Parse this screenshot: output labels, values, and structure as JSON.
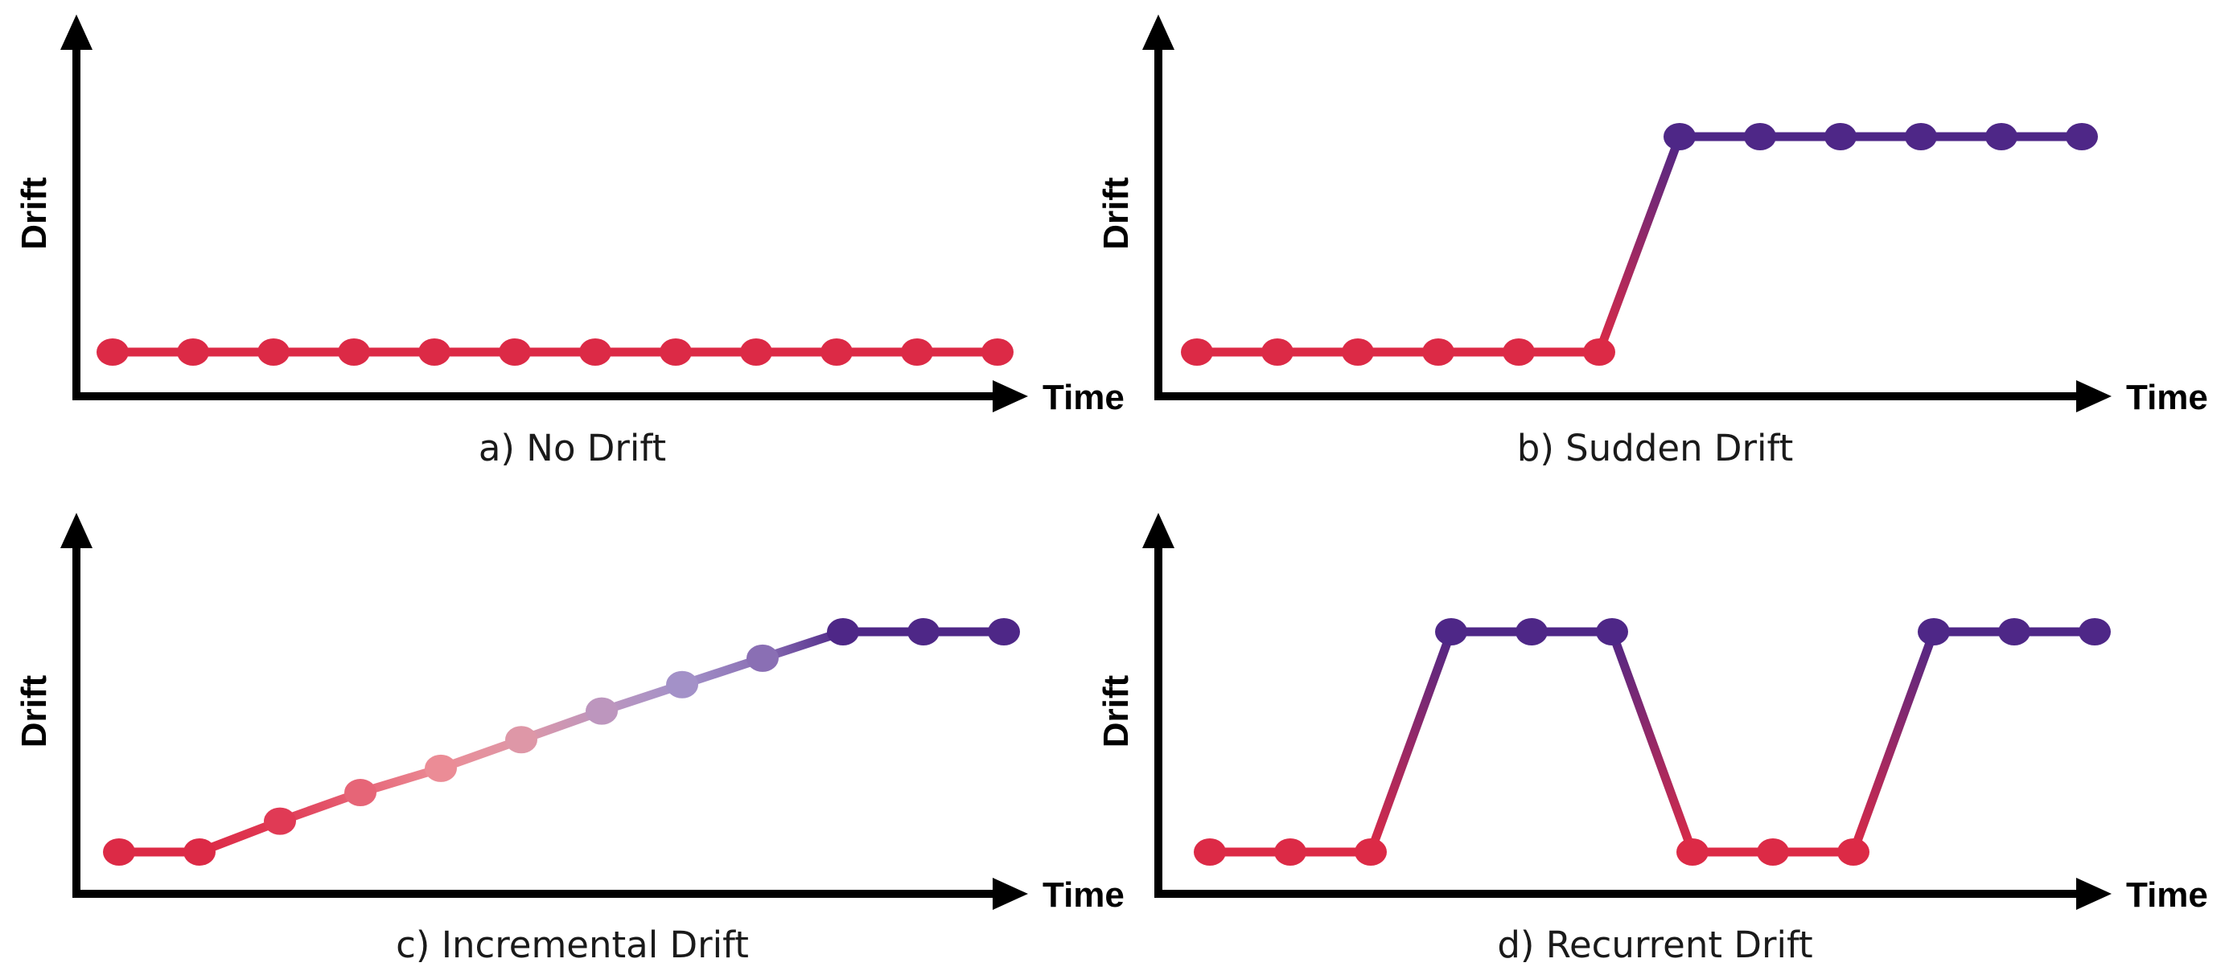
{
  "colors": {
    "axis": "#000000",
    "red": "#DC2A46",
    "purple": "#4E2787"
  },
  "chart_data": [
    {
      "type": "line",
      "caption": "a) No Drift",
      "xlabel": "Time",
      "ylabel": "Drift",
      "points": [
        {
          "x": 1,
          "y": 0,
          "color": "#DC2A46"
        },
        {
          "x": 2,
          "y": 0,
          "color": "#DC2A46"
        },
        {
          "x": 3,
          "y": 0,
          "color": "#DC2A46"
        },
        {
          "x": 4,
          "y": 0,
          "color": "#DC2A46"
        },
        {
          "x": 5,
          "y": 0,
          "color": "#DC2A46"
        },
        {
          "x": 6,
          "y": 0,
          "color": "#DC2A46"
        },
        {
          "x": 7,
          "y": 0,
          "color": "#DC2A46"
        },
        {
          "x": 8,
          "y": 0,
          "color": "#DC2A46"
        },
        {
          "x": 9,
          "y": 0,
          "color": "#DC2A46"
        },
        {
          "x": 10,
          "y": 0,
          "color": "#DC2A46"
        },
        {
          "x": 11,
          "y": 0,
          "color": "#DC2A46"
        },
        {
          "x": 12,
          "y": 0,
          "color": "#DC2A46"
        }
      ]
    },
    {
      "type": "line",
      "caption": "b) Sudden Drift",
      "xlabel": "Time",
      "ylabel": "Drift",
      "points": [
        {
          "x": 1,
          "y": 0,
          "color": "#DC2A46"
        },
        {
          "x": 2,
          "y": 0,
          "color": "#DC2A46"
        },
        {
          "x": 3,
          "y": 0,
          "color": "#DC2A46"
        },
        {
          "x": 4,
          "y": 0,
          "color": "#DC2A46"
        },
        {
          "x": 5,
          "y": 0,
          "color": "#DC2A46"
        },
        {
          "x": 6,
          "y": 0,
          "color": "#DC2A46"
        },
        {
          "x": 7,
          "y": 1,
          "color": "#4E2787"
        },
        {
          "x": 8,
          "y": 1,
          "color": "#4E2787"
        },
        {
          "x": 9,
          "y": 1,
          "color": "#4E2787"
        },
        {
          "x": 10,
          "y": 1,
          "color": "#4E2787"
        },
        {
          "x": 11,
          "y": 1,
          "color": "#4E2787"
        },
        {
          "x": 12,
          "y": 1,
          "color": "#4E2787"
        }
      ]
    },
    {
      "type": "line",
      "caption": "c) Incremental Drift",
      "xlabel": "Time",
      "ylabel": "Drift",
      "points": [
        {
          "x": 1,
          "y": 0,
          "color": "#DC2A46"
        },
        {
          "x": 2,
          "y": 0,
          "color": "#DC2A46"
        },
        {
          "x": 3,
          "y": 0.14,
          "color": "#E03A55"
        },
        {
          "x": 4,
          "y": 0.27,
          "color": "#E66577"
        },
        {
          "x": 5,
          "y": 0.38,
          "color": "#EB8C96"
        },
        {
          "x": 6,
          "y": 0.51,
          "color": "#DE97A7"
        },
        {
          "x": 7,
          "y": 0.64,
          "color": "#BD96BE"
        },
        {
          "x": 8,
          "y": 0.76,
          "color": "#A391C8"
        },
        {
          "x": 9,
          "y": 0.88,
          "color": "#8A6FB4"
        },
        {
          "x": 10,
          "y": 1,
          "color": "#4E2787"
        },
        {
          "x": 11,
          "y": 1,
          "color": "#4E2787"
        },
        {
          "x": 12,
          "y": 1,
          "color": "#4E2787"
        }
      ]
    },
    {
      "type": "line",
      "caption": "d) Recurrent Drift",
      "xlabel": "Time",
      "ylabel": "Drift",
      "points": [
        {
          "x": 1,
          "y": 0,
          "color": "#DC2A46"
        },
        {
          "x": 2,
          "y": 0,
          "color": "#DC2A46"
        },
        {
          "x": 3,
          "y": 0,
          "color": "#DC2A46"
        },
        {
          "x": 4,
          "y": 1,
          "color": "#4E2787"
        },
        {
          "x": 5,
          "y": 1,
          "color": "#4E2787"
        },
        {
          "x": 6,
          "y": 1,
          "color": "#4E2787"
        },
        {
          "x": 7,
          "y": 0,
          "color": "#DC2A46"
        },
        {
          "x": 8,
          "y": 0,
          "color": "#DC2A46"
        },
        {
          "x": 9,
          "y": 0,
          "color": "#DC2A46"
        },
        {
          "x": 10,
          "y": 1,
          "color": "#4E2787"
        },
        {
          "x": 11,
          "y": 1,
          "color": "#4E2787"
        },
        {
          "x": 12,
          "y": 1,
          "color": "#4E2787"
        }
      ]
    }
  ]
}
